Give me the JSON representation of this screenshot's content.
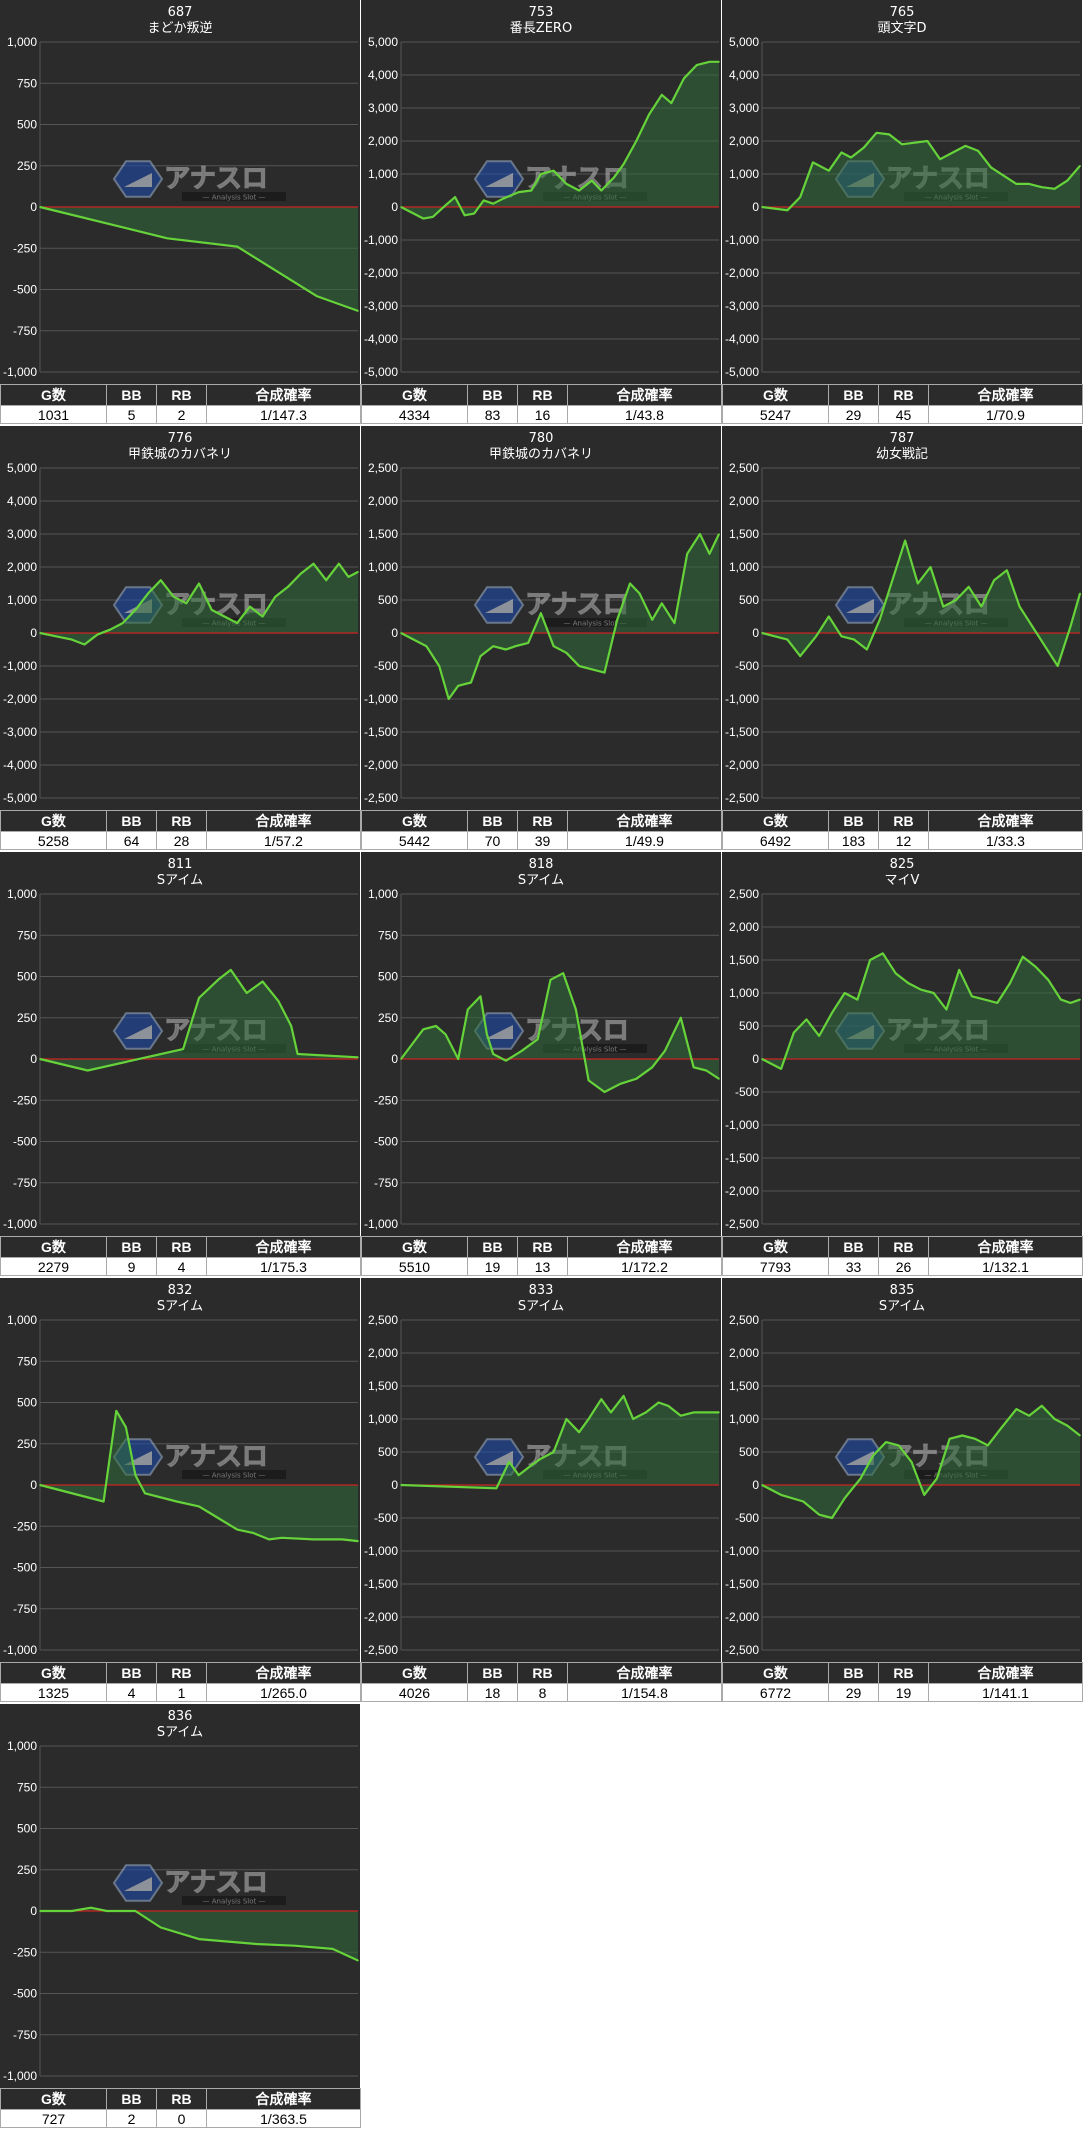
{
  "colors": {
    "panel_bg": "#2b2b2b",
    "grid": "#555555",
    "zero_line": "#cc2222",
    "series_line": "#66d33a",
    "series_fill": "#2f6b3a",
    "text": "#ffffff",
    "axis_text": "#ffffff"
  },
  "watermark": {
    "icon": "hexagon-logo-icon",
    "text": "アナスロ",
    "subtext": "Analysis Slot"
  },
  "table_headers": [
    "G数",
    "BB",
    "RB",
    "合成確率"
  ],
  "chart_data": [
    {
      "type": "area",
      "machine_no": "687",
      "title": "まどか叛逆",
      "ylim": [
        -1000,
        1000
      ],
      "yticks": [
        -1000,
        -750,
        -500,
        -250,
        0,
        250,
        500,
        750,
        1000
      ],
      "ytick_labels": [
        "-1,000",
        "-750",
        "-500",
        "-250",
        "0",
        "250",
        "500",
        "750",
        "1,000"
      ],
      "x": [
        0,
        0.4,
        0.62,
        0.87,
        1.0
      ],
      "values": [
        0,
        -190,
        -240,
        -540,
        -630
      ],
      "stats": {
        "games": "1031",
        "bb": "5",
        "rb": "2",
        "prob": "1/147.3"
      }
    },
    {
      "type": "area",
      "machine_no": "753",
      "title": "番長ZERO",
      "ylim": [
        -5000,
        5000
      ],
      "yticks": [
        -5000,
        -4000,
        -3000,
        -2000,
        -1000,
        0,
        1000,
        2000,
        3000,
        4000,
        5000
      ],
      "ytick_labels": [
        "-5,000",
        "-4,000",
        "-3,000",
        "-2,000",
        "-1,000",
        "0",
        "1,000",
        "2,000",
        "3,000",
        "4,000",
        "5,000"
      ],
      "x": [
        0,
        0.07,
        0.1,
        0.14,
        0.17,
        0.2,
        0.23,
        0.26,
        0.29,
        0.32,
        0.37,
        0.41,
        0.44,
        0.48,
        0.52,
        0.56,
        0.6,
        0.63,
        0.67,
        0.7,
        0.74,
        0.78,
        0.82,
        0.85,
        0.89,
        0.93,
        0.97,
        1.0
      ],
      "values": [
        0,
        -350,
        -300,
        50,
        300,
        -250,
        -200,
        200,
        100,
        250,
        450,
        500,
        1000,
        1100,
        700,
        500,
        800,
        500,
        900,
        1300,
        2000,
        2800,
        3400,
        3150,
        3900,
        4300,
        4400,
        4400
      ],
      "stats": {
        "games": "4334",
        "bb": "83",
        "rb": "16",
        "prob": "1/43.8"
      }
    },
    {
      "type": "area",
      "machine_no": "765",
      "title": "頭文字D",
      "ylim": [
        -5000,
        5000
      ],
      "yticks": [
        -5000,
        -4000,
        -3000,
        -2000,
        -1000,
        0,
        1000,
        2000,
        3000,
        4000,
        5000
      ],
      "ytick_labels": [
        "-5,000",
        "-4,000",
        "-3,000",
        "-2,000",
        "-1,000",
        "0",
        "1,000",
        "2,000",
        "3,000",
        "4,000",
        "5,000"
      ],
      "x": [
        0,
        0.08,
        0.12,
        0.16,
        0.21,
        0.25,
        0.28,
        0.32,
        0.36,
        0.4,
        0.44,
        0.48,
        0.52,
        0.56,
        0.6,
        0.64,
        0.68,
        0.72,
        0.76,
        0.8,
        0.84,
        0.88,
        0.92,
        0.96,
        1.0
      ],
      "values": [
        0,
        -100,
        300,
        1350,
        1100,
        1650,
        1500,
        1800,
        2250,
        2200,
        1900,
        1950,
        2000,
        1450,
        1650,
        1850,
        1700,
        1200,
        950,
        700,
        700,
        600,
        550,
        800,
        1250
      ],
      "stats": {
        "games": "5247",
        "bb": "29",
        "rb": "45",
        "prob": "1/70.9"
      }
    },
    {
      "type": "area",
      "machine_no": "776",
      "title": "甲鉄城のカバネリ",
      "ylim": [
        -5000,
        5000
      ],
      "yticks": [
        -5000,
        -4000,
        -3000,
        -2000,
        -1000,
        0,
        1000,
        2000,
        3000,
        4000,
        5000
      ],
      "ytick_labels": [
        "-5,000",
        "-4,000",
        "-3,000",
        "-2,000",
        "-1,000",
        "0",
        "1,000",
        "2,000",
        "3,000",
        "4,000",
        "5,000"
      ],
      "x": [
        0,
        0.05,
        0.1,
        0.14,
        0.18,
        0.22,
        0.26,
        0.3,
        0.34,
        0.38,
        0.42,
        0.46,
        0.5,
        0.54,
        0.58,
        0.62,
        0.66,
        0.7,
        0.74,
        0.78,
        0.82,
        0.86,
        0.9,
        0.94,
        0.97,
        1.0
      ],
      "values": [
        0,
        -100,
        -200,
        -350,
        -50,
        100,
        300,
        700,
        1200,
        1600,
        1100,
        900,
        1500,
        700,
        500,
        300,
        800,
        500,
        1100,
        1400,
        1800,
        2100,
        1600,
        2100,
        1700,
        1850
      ],
      "stats": {
        "games": "5258",
        "bb": "64",
        "rb": "28",
        "prob": "1/57.2"
      }
    },
    {
      "type": "area",
      "machine_no": "780",
      "title": "甲鉄城のカバネリ",
      "ylim": [
        -2500,
        2500
      ],
      "yticks": [
        -2500,
        -2000,
        -1500,
        -1000,
        -500,
        0,
        500,
        1000,
        1500,
        2000,
        2500
      ],
      "ytick_labels": [
        "-2,500",
        "-2,000",
        "-1,500",
        "-1,000",
        "-500",
        "0",
        "500",
        "1,000",
        "1,500",
        "2,000",
        "2,500"
      ],
      "x": [
        0,
        0.04,
        0.08,
        0.12,
        0.15,
        0.18,
        0.22,
        0.25,
        0.29,
        0.33,
        0.36,
        0.4,
        0.44,
        0.48,
        0.52,
        0.56,
        0.6,
        0.64,
        0.68,
        0.72,
        0.75,
        0.79,
        0.82,
        0.86,
        0.9,
        0.94,
        0.97,
        1.0
      ],
      "values": [
        0,
        -100,
        -200,
        -500,
        -1000,
        -800,
        -750,
        -350,
        -200,
        -250,
        -200,
        -150,
        300,
        -200,
        -300,
        -500,
        -550,
        -600,
        200,
        750,
        600,
        200,
        450,
        150,
        1200,
        1500,
        1200,
        1500
      ],
      "stats": {
        "games": "5442",
        "bb": "70",
        "rb": "39",
        "prob": "1/49.9"
      }
    },
    {
      "type": "area",
      "machine_no": "787",
      "title": "幼女戦記",
      "ylim": [
        -2500,
        2500
      ],
      "yticks": [
        -2500,
        -2000,
        -1500,
        -1000,
        -500,
        0,
        500,
        1000,
        1500,
        2000,
        2500
      ],
      "ytick_labels": [
        "-2,500",
        "-2,000",
        "-1,500",
        "-1,000",
        "-500",
        "0",
        "500",
        "1,000",
        "1,500",
        "2,000",
        "2,500"
      ],
      "x": [
        0,
        0.08,
        0.12,
        0.17,
        0.21,
        0.25,
        0.29,
        0.33,
        0.37,
        0.41,
        0.45,
        0.49,
        0.53,
        0.57,
        0.61,
        0.65,
        0.69,
        0.73,
        0.77,
        0.81,
        0.85,
        0.89,
        0.93,
        0.97,
        1.0
      ],
      "values": [
        0,
        -100,
        -350,
        -50,
        250,
        -50,
        -100,
        -250,
        200,
        800,
        1400,
        750,
        1000,
        400,
        500,
        700,
        400,
        800,
        950,
        400,
        100,
        -200,
        -500,
        100,
        600
      ],
      "stats": {
        "games": "6492",
        "bb": "183",
        "rb": "12",
        "prob": "1/33.3"
      }
    },
    {
      "type": "area",
      "machine_no": "811",
      "title": "Sアイム",
      "ylim": [
        -1000,
        1000
      ],
      "yticks": [
        -1000,
        -750,
        -500,
        -250,
        0,
        250,
        500,
        750,
        1000
      ],
      "ytick_labels": [
        "-1,000",
        "-750",
        "-500",
        "-250",
        "0",
        "250",
        "500",
        "750",
        "1,000"
      ],
      "x": [
        0,
        0.15,
        0.45,
        0.5,
        0.56,
        0.6,
        0.65,
        0.7,
        0.75,
        0.79,
        0.81,
        1.0
      ],
      "values": [
        0,
        -70,
        60,
        370,
        480,
        540,
        400,
        470,
        350,
        200,
        30,
        10
      ],
      "stats": {
        "games": "2279",
        "bb": "9",
        "rb": "4",
        "prob": "1/175.3"
      }
    },
    {
      "type": "area",
      "machine_no": "818",
      "title": "Sアイム",
      "ylim": [
        -1000,
        1000
      ],
      "yticks": [
        -1000,
        -750,
        -500,
        -250,
        0,
        250,
        500,
        750,
        1000
      ],
      "ytick_labels": [
        "-1,000",
        "-750",
        "-500",
        "-250",
        "0",
        "250",
        "500",
        "750",
        "1,000"
      ],
      "x": [
        0,
        0.07,
        0.11,
        0.14,
        0.18,
        0.21,
        0.25,
        0.27,
        0.29,
        0.33,
        0.38,
        0.43,
        0.47,
        0.51,
        0.55,
        0.59,
        0.64,
        0.69,
        0.74,
        0.79,
        0.83,
        0.88,
        0.92,
        0.96,
        1.0
      ],
      "values": [
        0,
        180,
        200,
        150,
        0,
        300,
        380,
        150,
        30,
        -10,
        50,
        120,
        480,
        520,
        300,
        -130,
        -200,
        -150,
        -120,
        -50,
        50,
        250,
        -50,
        -70,
        -120
      ],
      "stats": {
        "games": "5510",
        "bb": "19",
        "rb": "13",
        "prob": "1/172.2"
      }
    },
    {
      "type": "area",
      "machine_no": "825",
      "title": "マイV",
      "ylim": [
        -2500,
        2500
      ],
      "yticks": [
        -2500,
        -2000,
        -1500,
        -1000,
        -500,
        0,
        500,
        1000,
        1500,
        2000,
        2500
      ],
      "ytick_labels": [
        "-2,500",
        "-2,000",
        "-1,500",
        "-1,000",
        "-500",
        "0",
        "500",
        "1,000",
        "1,500",
        "2,000",
        "2,500"
      ],
      "x": [
        0,
        0.06,
        0.1,
        0.14,
        0.18,
        0.22,
        0.26,
        0.3,
        0.34,
        0.38,
        0.42,
        0.46,
        0.5,
        0.54,
        0.58,
        0.62,
        0.66,
        0.7,
        0.74,
        0.78,
        0.82,
        0.86,
        0.9,
        0.94,
        0.97,
        1.0
      ],
      "values": [
        0,
        -150,
        400,
        600,
        350,
        700,
        1000,
        900,
        1500,
        1600,
        1300,
        1150,
        1050,
        1000,
        750,
        1350,
        950,
        900,
        850,
        1150,
        1550,
        1400,
        1200,
        900,
        850,
        900
      ],
      "stats": {
        "games": "7793",
        "bb": "33",
        "rb": "26",
        "prob": "1/132.1"
      }
    },
    {
      "type": "area",
      "machine_no": "832",
      "title": "Sアイム",
      "ylim": [
        -1000,
        1000
      ],
      "yticks": [
        -1000,
        -750,
        -500,
        -250,
        0,
        250,
        500,
        750,
        1000
      ],
      "ytick_labels": [
        "-1,000",
        "-750",
        "-500",
        "-250",
        "0",
        "250",
        "500",
        "750",
        "1,000"
      ],
      "x": [
        0,
        0.2,
        0.24,
        0.27,
        0.3,
        0.33,
        0.43,
        0.5,
        0.56,
        0.62,
        0.67,
        0.72,
        0.76,
        0.86,
        0.95,
        1.0
      ],
      "values": [
        0,
        -100,
        450,
        350,
        60,
        -50,
        -100,
        -130,
        -200,
        -270,
        -290,
        -330,
        -320,
        -330,
        -330,
        -340
      ],
      "stats": {
        "games": "1325",
        "bb": "4",
        "rb": "1",
        "prob": "1/265.0"
      }
    },
    {
      "type": "area",
      "machine_no": "833",
      "title": "Sアイム",
      "ylim": [
        -2500,
        2500
      ],
      "yticks": [
        -2500,
        -2000,
        -1500,
        -1000,
        -500,
        0,
        500,
        1000,
        1500,
        2000,
        2500
      ],
      "ytick_labels": [
        "-2,500",
        "-2,000",
        "-1,500",
        "-1,000",
        "-500",
        "0",
        "500",
        "1,000",
        "1,500",
        "2,000",
        "2,500"
      ],
      "x": [
        0,
        0.3,
        0.34,
        0.37,
        0.41,
        0.44,
        0.48,
        0.52,
        0.56,
        0.59,
        0.63,
        0.66,
        0.7,
        0.73,
        0.77,
        0.81,
        0.84,
        0.88,
        0.92,
        0.96,
        1.0
      ],
      "values": [
        0,
        -50,
        350,
        150,
        300,
        400,
        500,
        1000,
        800,
        1000,
        1300,
        1100,
        1350,
        1000,
        1100,
        1250,
        1200,
        1050,
        1100,
        1100,
        1100
      ],
      "stats": {
        "games": "4026",
        "bb": "18",
        "rb": "8",
        "prob": "1/154.8"
      }
    },
    {
      "type": "area",
      "machine_no": "835",
      "title": "Sアイム",
      "ylim": [
        -2500,
        2500
      ],
      "yticks": [
        -2500,
        -2000,
        -1500,
        -1000,
        -500,
        0,
        500,
        1000,
        1500,
        2000,
        2500
      ],
      "ytick_labels": [
        "-2,500",
        "-2,000",
        "-1,500",
        "-1,000",
        "-500",
        "0",
        "500",
        "1,000",
        "1,500",
        "2,000",
        "2,500"
      ],
      "x": [
        0,
        0.06,
        0.13,
        0.18,
        0.22,
        0.26,
        0.31,
        0.35,
        0.39,
        0.43,
        0.47,
        0.51,
        0.55,
        0.59,
        0.63,
        0.67,
        0.71,
        0.75,
        0.8,
        0.84,
        0.88,
        0.92,
        0.96,
        1.0
      ],
      "values": [
        0,
        -150,
        -250,
        -450,
        -500,
        -200,
        100,
        450,
        650,
        600,
        350,
        -150,
        100,
        700,
        750,
        700,
        600,
        850,
        1150,
        1050,
        1200,
        1000,
        900,
        750
      ],
      "stats": {
        "games": "6772",
        "bb": "29",
        "rb": "19",
        "prob": "1/141.1"
      }
    },
    {
      "type": "area",
      "machine_no": "836",
      "title": "Sアイム",
      "ylim": [
        -1000,
        1000
      ],
      "yticks": [
        -1000,
        -750,
        -500,
        -250,
        0,
        250,
        500,
        750,
        1000
      ],
      "ytick_labels": [
        "-1,000",
        "-750",
        "-500",
        "-250",
        "0",
        "250",
        "500",
        "750",
        "1,000"
      ],
      "x": [
        0,
        0.1,
        0.16,
        0.21,
        0.3,
        0.38,
        0.5,
        0.68,
        0.8,
        0.92,
        1.0
      ],
      "values": [
        0,
        0,
        20,
        0,
        0,
        -100,
        -170,
        -200,
        -210,
        -230,
        -300
      ],
      "stats": {
        "games": "727",
        "bb": "2",
        "rb": "0",
        "prob": "1/363.5"
      }
    }
  ]
}
